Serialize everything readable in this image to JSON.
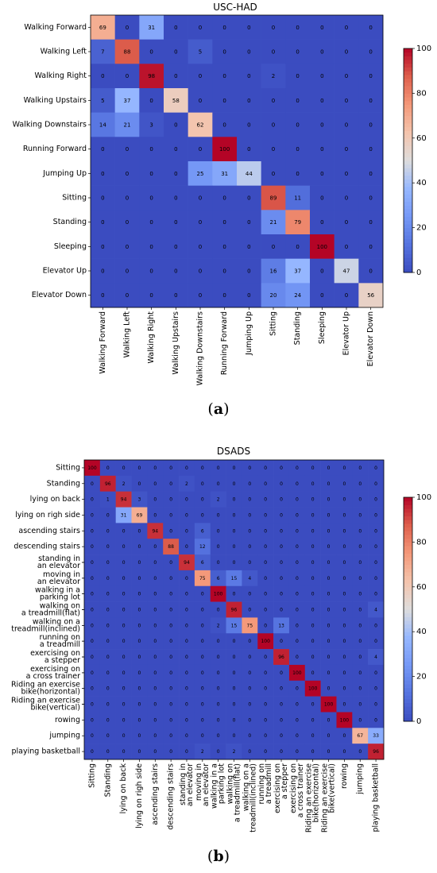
{
  "chart_data": [
    {
      "type": "heatmap",
      "panel_label": "(a)",
      "panel_label_letter": "a",
      "title": "USC-HAD",
      "row_labels": [
        [
          "Walking Forward"
        ],
        [
          "Walking Left"
        ],
        [
          "Walking Right"
        ],
        [
          "Walking Upstairs"
        ],
        [
          "Walking Downstairs"
        ],
        [
          "Running Forward"
        ],
        [
          "Jumping Up"
        ],
        [
          "Sitting"
        ],
        [
          "Standing"
        ],
        [
          "Sleeping"
        ],
        [
          "Elevator Up"
        ],
        [
          "Elevator Down"
        ]
      ],
      "col_labels": [
        [
          "Walking Forward"
        ],
        [
          "Walking Left"
        ],
        [
          "Walking Right"
        ],
        [
          "Walking Upstairs"
        ],
        [
          "Walking Downstairs"
        ],
        [
          "Running Forward"
        ],
        [
          "Jumping Up"
        ],
        [
          "Sitting"
        ],
        [
          "Standing"
        ],
        [
          "Sleeping"
        ],
        [
          "Elevator Up"
        ],
        [
          "Elevator Down"
        ]
      ],
      "values": [
        [
          69,
          0,
          31,
          0,
          0,
          0,
          0,
          0,
          0,
          0,
          0,
          0
        ],
        [
          7,
          88,
          0,
          0,
          5,
          0,
          0,
          0,
          0,
          0,
          0,
          0
        ],
        [
          0,
          0,
          98,
          0,
          0,
          0,
          0,
          2,
          0,
          0,
          0,
          0
        ],
        [
          5,
          37,
          0,
          58,
          0,
          0,
          0,
          0,
          0,
          0,
          0,
          0
        ],
        [
          14,
          21,
          3,
          0,
          62,
          0,
          0,
          0,
          0,
          0,
          0,
          0
        ],
        [
          0,
          0,
          0,
          0,
          0,
          100,
          0,
          0,
          0,
          0,
          0,
          0
        ],
        [
          0,
          0,
          0,
          0,
          25,
          31,
          44,
          0,
          0,
          0,
          0,
          0
        ],
        [
          0,
          0,
          0,
          0,
          0,
          0,
          0,
          89,
          11,
          0,
          0,
          0
        ],
        [
          0,
          0,
          0,
          0,
          0,
          0,
          0,
          21,
          79,
          0,
          0,
          0
        ],
        [
          0,
          0,
          0,
          0,
          0,
          0,
          0,
          0,
          0,
          100,
          0,
          0
        ],
        [
          0,
          0,
          0,
          0,
          0,
          0,
          0,
          16,
          37,
          0,
          47,
          0
        ],
        [
          0,
          0,
          0,
          0,
          0,
          0,
          0,
          20,
          24,
          0,
          0,
          56
        ]
      ],
      "colorbar": {
        "min": 0,
        "max": 100,
        "ticks": [
          "0",
          "20",
          "40",
          "60",
          "80",
          "100"
        ],
        "colormap": "coolwarm"
      },
      "colors": {
        "low": "#3b4cc0",
        "mid": "#dddddd",
        "high": "#b40426"
      }
    },
    {
      "type": "heatmap",
      "panel_label": "(b)",
      "panel_label_letter": "b",
      "title": "DSADS",
      "row_labels": [
        [
          "Sitting"
        ],
        [
          "Standing"
        ],
        [
          "lying on back"
        ],
        [
          "lying on righ side"
        ],
        [
          "ascending stairs"
        ],
        [
          "descending stairs"
        ],
        [
          "standing in",
          "an elevator"
        ],
        [
          "moving in",
          "an elevator"
        ],
        [
          "walking in a",
          "parking lot"
        ],
        [
          "walking on",
          "a treadmill(flat)"
        ],
        [
          "walking on a",
          "treadmill(inclined)"
        ],
        [
          "running on",
          "a treadmill"
        ],
        [
          "exercising on",
          "a stepper"
        ],
        [
          "exercising on",
          "a cross trainer"
        ],
        [
          "Riding an exercise",
          "bike(horizontal)"
        ],
        [
          "Riding an exercise",
          "bike(vertical)"
        ],
        [
          "rowing"
        ],
        [
          "jumping"
        ],
        [
          "playing basketball"
        ]
      ],
      "col_labels": [
        [
          "Sitting"
        ],
        [
          "Standing"
        ],
        [
          "lying on back"
        ],
        [
          "lying on righ side"
        ],
        [
          "ascending stairs"
        ],
        [
          "descending stairs"
        ],
        [
          "standing in",
          "an elevator"
        ],
        [
          "moving in",
          "an elevator"
        ],
        [
          "walking in a",
          "parking lot"
        ],
        [
          "walking on",
          "a treadmill(flat)"
        ],
        [
          "walking on a",
          "treadmill(inclined)"
        ],
        [
          "running on",
          "a treadmill"
        ],
        [
          "exercising on",
          "a stepper"
        ],
        [
          "exercising on",
          "a cross trainer"
        ],
        [
          "Riding an exercise",
          "bike(horizontal)"
        ],
        [
          "Riding an exercise",
          "bike(vertical)"
        ],
        [
          "rowing"
        ],
        [
          "jumping"
        ],
        [
          "playing basketball"
        ]
      ],
      "values": [
        [
          100,
          0,
          0,
          0,
          0,
          0,
          0,
          0,
          0,
          0,
          0,
          0,
          0,
          0,
          0,
          0,
          0,
          0,
          0
        ],
        [
          0,
          96,
          2,
          0,
          0,
          0,
          2,
          0,
          0,
          0,
          0,
          0,
          0,
          0,
          0,
          0,
          0,
          0,
          0
        ],
        [
          0,
          1,
          94,
          3,
          0,
          0,
          0,
          0,
          2,
          0,
          0,
          0,
          0,
          0,
          0,
          0,
          0,
          0,
          0
        ],
        [
          0,
          0,
          31,
          69,
          0,
          0,
          0,
          0,
          0,
          0,
          0,
          0,
          0,
          0,
          0,
          0,
          0,
          0,
          0
        ],
        [
          0,
          0,
          0,
          0,
          94,
          0,
          0,
          6,
          0,
          0,
          0,
          0,
          0,
          0,
          0,
          0,
          0,
          0,
          0
        ],
        [
          0,
          0,
          0,
          0,
          0,
          88,
          0,
          12,
          0,
          0,
          0,
          0,
          0,
          0,
          0,
          0,
          0,
          0,
          0
        ],
        [
          0,
          0,
          0,
          0,
          0,
          0,
          94,
          6,
          0,
          0,
          0,
          0,
          0,
          0,
          0,
          0,
          0,
          0,
          0
        ],
        [
          0,
          0,
          0,
          0,
          0,
          0,
          0,
          75,
          6,
          15,
          4,
          0,
          0,
          0,
          0,
          0,
          0,
          0,
          0
        ],
        [
          0,
          0,
          0,
          0,
          0,
          0,
          0,
          0,
          100,
          0,
          0,
          0,
          0,
          0,
          0,
          0,
          0,
          0,
          0
        ],
        [
          0,
          0,
          0,
          0,
          0,
          0,
          0,
          0,
          0,
          96,
          0,
          0,
          0,
          0,
          0,
          0,
          0,
          0,
          4
        ],
        [
          0,
          0,
          0,
          0,
          0,
          0,
          0,
          0,
          2,
          15,
          75,
          0,
          13,
          0,
          0,
          0,
          0,
          0,
          0
        ],
        [
          0,
          0,
          0,
          0,
          0,
          0,
          0,
          0,
          0,
          0,
          0,
          100,
          0,
          0,
          0,
          0,
          0,
          0,
          0
        ],
        [
          0,
          0,
          0,
          0,
          0,
          0,
          0,
          0,
          0,
          0,
          0,
          0,
          96,
          0,
          0,
          0,
          0,
          0,
          4
        ],
        [
          0,
          0,
          0,
          0,
          0,
          0,
          0,
          0,
          0,
          0,
          0,
          0,
          0,
          100,
          0,
          0,
          0,
          0,
          0
        ],
        [
          0,
          0,
          0,
          0,
          0,
          0,
          0,
          0,
          0,
          0,
          0,
          0,
          0,
          0,
          100,
          0,
          0,
          0,
          0
        ],
        [
          0,
          0,
          0,
          0,
          0,
          0,
          0,
          0,
          0,
          0,
          0,
          0,
          0,
          0,
          0,
          100,
          0,
          0,
          0
        ],
        [
          0,
          0,
          0,
          0,
          0,
          0,
          0,
          0,
          0,
          0,
          0,
          0,
          0,
          0,
          0,
          0,
          100,
          0,
          0
        ],
        [
          0,
          0,
          0,
          0,
          0,
          0,
          0,
          0,
          0,
          0,
          0,
          0,
          0,
          0,
          0,
          0,
          0,
          67,
          33
        ],
        [
          0,
          0,
          0,
          0,
          0,
          0,
          0,
          2,
          0,
          2,
          0,
          0,
          0,
          0,
          0,
          0,
          0,
          0,
          96
        ]
      ],
      "colorbar": {
        "min": 0,
        "max": 100,
        "ticks": [
          "0",
          "20",
          "40",
          "60",
          "80",
          "100"
        ],
        "colormap": "coolwarm"
      },
      "colors": {
        "low": "#3b4cc0",
        "mid": "#dddddd",
        "high": "#b40426"
      }
    }
  ]
}
